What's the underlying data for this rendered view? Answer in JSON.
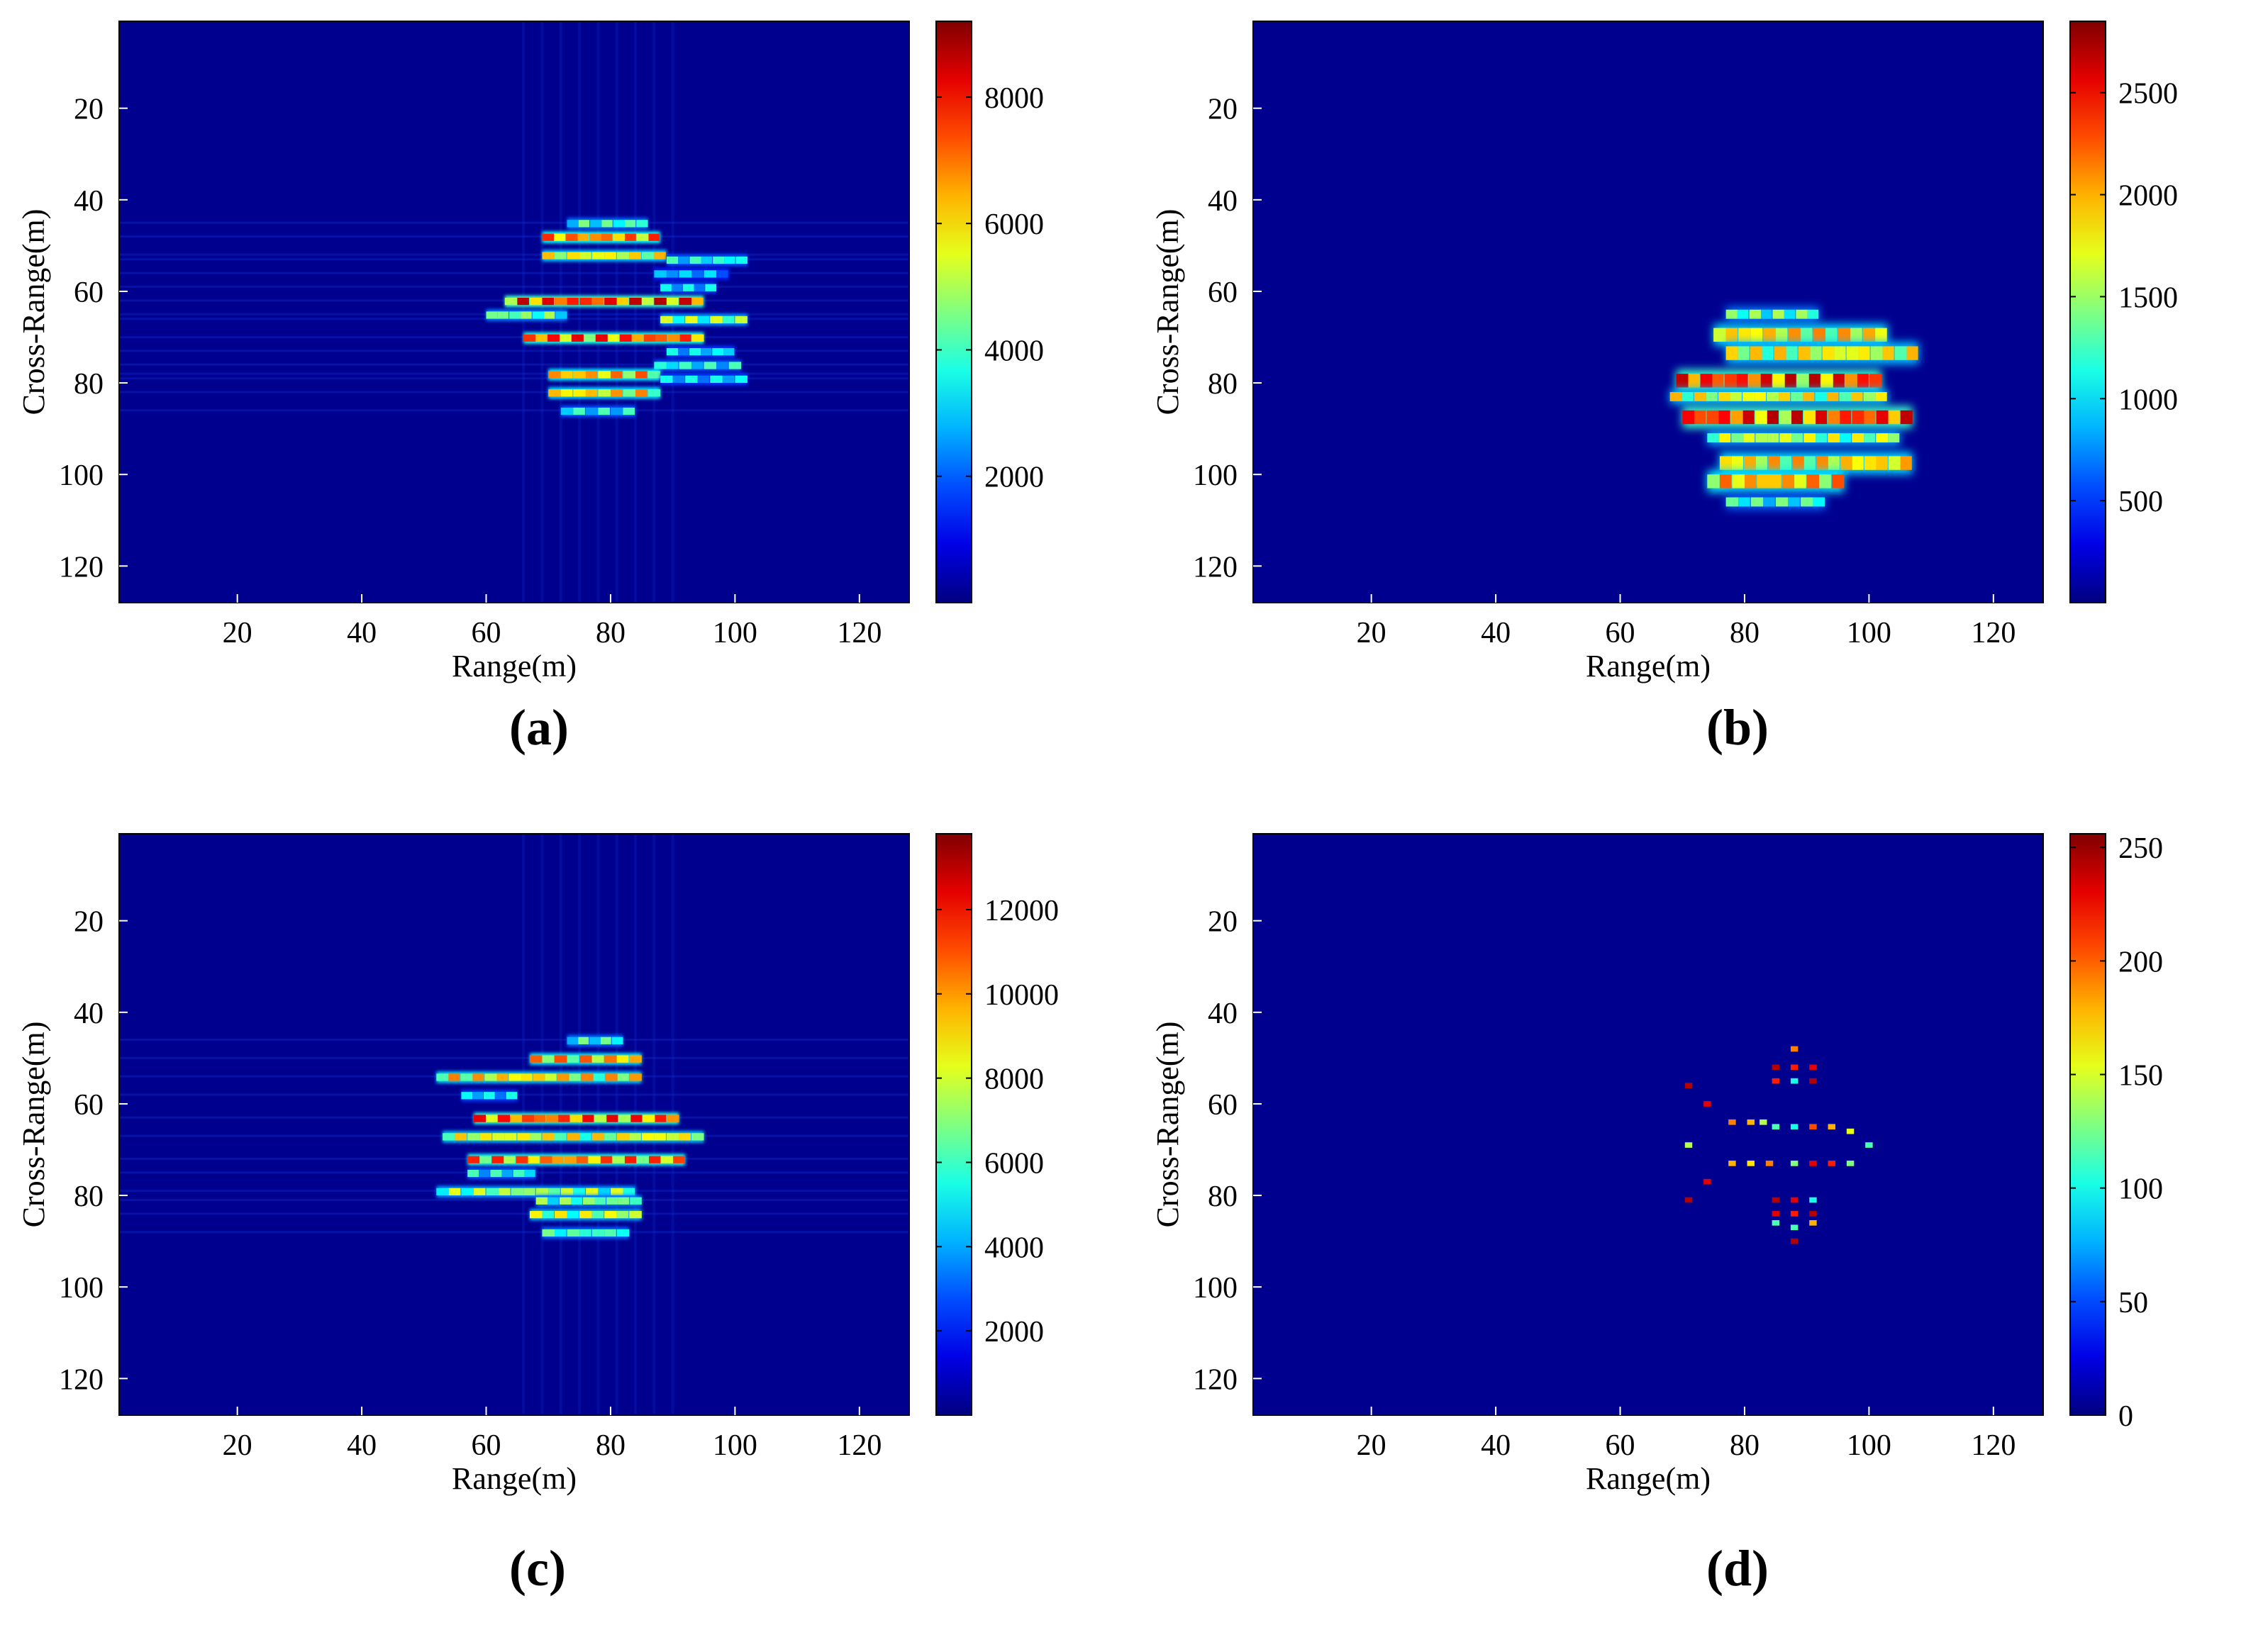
{
  "figure": {
    "panels": [
      {
        "label": "a",
        "xlabel": "Range(m)",
        "ylabel": "Cross-Range(m)"
      },
      {
        "label": "b",
        "xlabel": "Range(m)",
        "ylabel": "Cross-Range(m)"
      },
      {
        "label": "c",
        "xlabel": "Range(m)",
        "ylabel": "Cross-Range(m)"
      },
      {
        "label": "d",
        "xlabel": "Range(m)",
        "ylabel": "Cross-Range(m)"
      }
    ]
  },
  "colors": {
    "background": "#00008f",
    "colormap": [
      "#00008f",
      "#0000ff",
      "#00ffff",
      "#ffff00",
      "#ff0000",
      "#800000"
    ]
  },
  "chart_data": [
    {
      "type": "heatmap",
      "xlabel": "Range(m)",
      "ylabel": "Cross-Range(m)",
      "xlim": [
        1,
        128
      ],
      "ylim": [
        1,
        128
      ],
      "y_reversed": true,
      "xticks": [
        20,
        40,
        60,
        80,
        100,
        120
      ],
      "yticks": [
        20,
        40,
        60,
        80,
        100,
        120
      ],
      "colorbar": {
        "min": 0,
        "max": 9200,
        "ticks": [
          2000,
          4000,
          6000,
          8000
        ]
      },
      "rows": [
        {
          "y": 45,
          "x0": 73,
          "x1": 86,
          "v": 0.5
        },
        {
          "y": 48,
          "x0": 69,
          "x1": 88,
          "v": 0.85
        },
        {
          "y": 52,
          "x0": 69,
          "x1": 89,
          "v": 0.7
        },
        {
          "y": 53,
          "x0": 89,
          "x1": 102,
          "v": 0.45
        },
        {
          "y": 56,
          "x0": 87,
          "x1": 99,
          "v": 0.35
        },
        {
          "y": 59,
          "x0": 88,
          "x1": 97,
          "v": 0.4
        },
        {
          "y": 62,
          "x0": 63,
          "x1": 95,
          "v": 0.95
        },
        {
          "y": 65,
          "x0": 60,
          "x1": 73,
          "v": 0.55
        },
        {
          "y": 66,
          "x0": 88,
          "x1": 102,
          "v": 0.6
        },
        {
          "y": 70,
          "x0": 66,
          "x1": 95,
          "v": 0.9
        },
        {
          "y": 73,
          "x0": 89,
          "x1": 100,
          "v": 0.4
        },
        {
          "y": 76,
          "x0": 87,
          "x1": 101,
          "v": 0.45
        },
        {
          "y": 78,
          "x0": 70,
          "x1": 88,
          "v": 0.8
        },
        {
          "y": 79,
          "x0": 88,
          "x1": 102,
          "v": 0.4
        },
        {
          "y": 82,
          "x0": 70,
          "x1": 88,
          "v": 0.75
        },
        {
          "y": 86,
          "x0": 72,
          "x1": 84,
          "v": 0.45
        }
      ]
    },
    {
      "type": "heatmap",
      "xlabel": "Range(m)",
      "ylabel": "Cross-Range(m)",
      "xlim": [
        1,
        128
      ],
      "ylim": [
        1,
        128
      ],
      "y_reversed": true,
      "xticks": [
        20,
        40,
        60,
        80,
        100,
        120
      ],
      "yticks": [
        20,
        40,
        60,
        80,
        100,
        120
      ],
      "colorbar": {
        "min": 0,
        "max": 2850,
        "ticks": [
          500,
          1000,
          1500,
          2000,
          2500
        ]
      },
      "rows": [
        {
          "y0": 64,
          "y1": 66,
          "x0": 77,
          "x1": 92,
          "v": 0.55
        },
        {
          "y0": 68,
          "y1": 71,
          "x0": 75,
          "x1": 103,
          "v": 0.75
        },
        {
          "y0": 72,
          "y1": 75,
          "x0": 77,
          "x1": 108,
          "v": 0.7
        },
        {
          "y0": 78,
          "y1": 81,
          "x0": 69,
          "x1": 102,
          "v": 0.95
        },
        {
          "y0": 82,
          "y1": 84,
          "x0": 68,
          "x1": 103,
          "v": 0.7
        },
        {
          "y0": 86,
          "y1": 89,
          "x0": 70,
          "x1": 107,
          "v": 0.95
        },
        {
          "y0": 91,
          "y1": 93,
          "x0": 74,
          "x1": 105,
          "v": 0.65
        },
        {
          "y0": 96,
          "y1": 99,
          "x0": 76,
          "x1": 107,
          "v": 0.75
        },
        {
          "y0": 100,
          "y1": 103,
          "x0": 74,
          "x1": 96,
          "v": 0.8
        },
        {
          "y0": 105,
          "y1": 107,
          "x0": 77,
          "x1": 93,
          "v": 0.5
        }
      ]
    },
    {
      "type": "heatmap",
      "xlabel": "Range(m)",
      "ylabel": "Cross-Range(m)",
      "xlim": [
        1,
        128
      ],
      "ylim": [
        1,
        128
      ],
      "y_reversed": true,
      "xticks": [
        20,
        40,
        60,
        80,
        100,
        120
      ],
      "yticks": [
        20,
        40,
        60,
        80,
        100,
        120
      ],
      "colorbar": {
        "min": 0,
        "max": 13800,
        "ticks": [
          2000,
          4000,
          6000,
          8000,
          10000,
          12000
        ]
      },
      "rows": [
        {
          "y": 46,
          "x0": 73,
          "x1": 82,
          "v": 0.5
        },
        {
          "y": 50,
          "x0": 67,
          "x1": 85,
          "v": 0.8
        },
        {
          "y": 54,
          "x0": 52,
          "x1": 85,
          "v": 0.75
        },
        {
          "y": 58,
          "x0": 56,
          "x1": 65,
          "v": 0.4
        },
        {
          "y": 63,
          "x0": 58,
          "x1": 91,
          "v": 0.9
        },
        {
          "y": 67,
          "x0": 53,
          "x1": 95,
          "v": 0.7
        },
        {
          "y": 72,
          "x0": 57,
          "x1": 92,
          "v": 0.85
        },
        {
          "y": 75,
          "x0": 57,
          "x1": 68,
          "v": 0.45
        },
        {
          "y": 79,
          "x0": 52,
          "x1": 84,
          "v": 0.6
        },
        {
          "y": 81,
          "x0": 68,
          "x1": 85,
          "v": 0.55
        },
        {
          "y": 84,
          "x0": 67,
          "x1": 85,
          "v": 0.65
        },
        {
          "y": 88,
          "x0": 69,
          "x1": 83,
          "v": 0.5
        }
      ]
    },
    {
      "type": "heatmap",
      "xlabel": "Range(m)",
      "ylabel": "Cross-Range(m)",
      "xlim": [
        1,
        128
      ],
      "ylim": [
        1,
        128
      ],
      "y_reversed": true,
      "xticks": [
        20,
        40,
        60,
        80,
        100,
        120
      ],
      "yticks": [
        20,
        40,
        60,
        80,
        100,
        120
      ],
      "colorbar": {
        "min": 0,
        "max": 256,
        "ticks": [
          0,
          50,
          100,
          150,
          200,
          250
        ]
      },
      "points": [
        {
          "x": 88,
          "y": 48,
          "v": 0.75
        },
        {
          "x": 85,
          "y": 52,
          "v": 0.95
        },
        {
          "x": 88,
          "y": 52,
          "v": 0.85
        },
        {
          "x": 91,
          "y": 52,
          "v": 0.9
        },
        {
          "x": 85,
          "y": 55,
          "v": 0.85
        },
        {
          "x": 88,
          "y": 55,
          "v": 0.4
        },
        {
          "x": 91,
          "y": 55,
          "v": 0.95
        },
        {
          "x": 71,
          "y": 56,
          "v": 0.95
        },
        {
          "x": 74,
          "y": 60,
          "v": 0.9
        },
        {
          "x": 78,
          "y": 64,
          "v": 0.75
        },
        {
          "x": 81,
          "y": 64,
          "v": 0.7
        },
        {
          "x": 83,
          "y": 64,
          "v": 0.55
        },
        {
          "x": 85,
          "y": 65,
          "v": 0.45
        },
        {
          "x": 88,
          "y": 65,
          "v": 0.4
        },
        {
          "x": 91,
          "y": 65,
          "v": 0.8
        },
        {
          "x": 94,
          "y": 65,
          "v": 0.7
        },
        {
          "x": 97,
          "y": 66,
          "v": 0.6
        },
        {
          "x": 71,
          "y": 69,
          "v": 0.55
        },
        {
          "x": 100,
          "y": 69,
          "v": 0.45
        },
        {
          "x": 78,
          "y": 73,
          "v": 0.7
        },
        {
          "x": 81,
          "y": 73,
          "v": 0.65
        },
        {
          "x": 84,
          "y": 73,
          "v": 0.75
        },
        {
          "x": 88,
          "y": 73,
          "v": 0.5
        },
        {
          "x": 91,
          "y": 73,
          "v": 0.9
        },
        {
          "x": 94,
          "y": 73,
          "v": 0.85
        },
        {
          "x": 97,
          "y": 73,
          "v": 0.5
        },
        {
          "x": 74,
          "y": 77,
          "v": 0.9
        },
        {
          "x": 71,
          "y": 81,
          "v": 0.95
        },
        {
          "x": 85,
          "y": 81,
          "v": 0.95
        },
        {
          "x": 88,
          "y": 81,
          "v": 0.9
        },
        {
          "x": 91,
          "y": 81,
          "v": 0.4
        },
        {
          "x": 85,
          "y": 84,
          "v": 0.9
        },
        {
          "x": 88,
          "y": 84,
          "v": 0.85
        },
        {
          "x": 91,
          "y": 84,
          "v": 0.95
        },
        {
          "x": 85,
          "y": 86,
          "v": 0.45
        },
        {
          "x": 88,
          "y": 87,
          "v": 0.45
        },
        {
          "x": 91,
          "y": 86,
          "v": 0.7
        },
        {
          "x": 88,
          "y": 90,
          "v": 0.95
        }
      ]
    }
  ]
}
